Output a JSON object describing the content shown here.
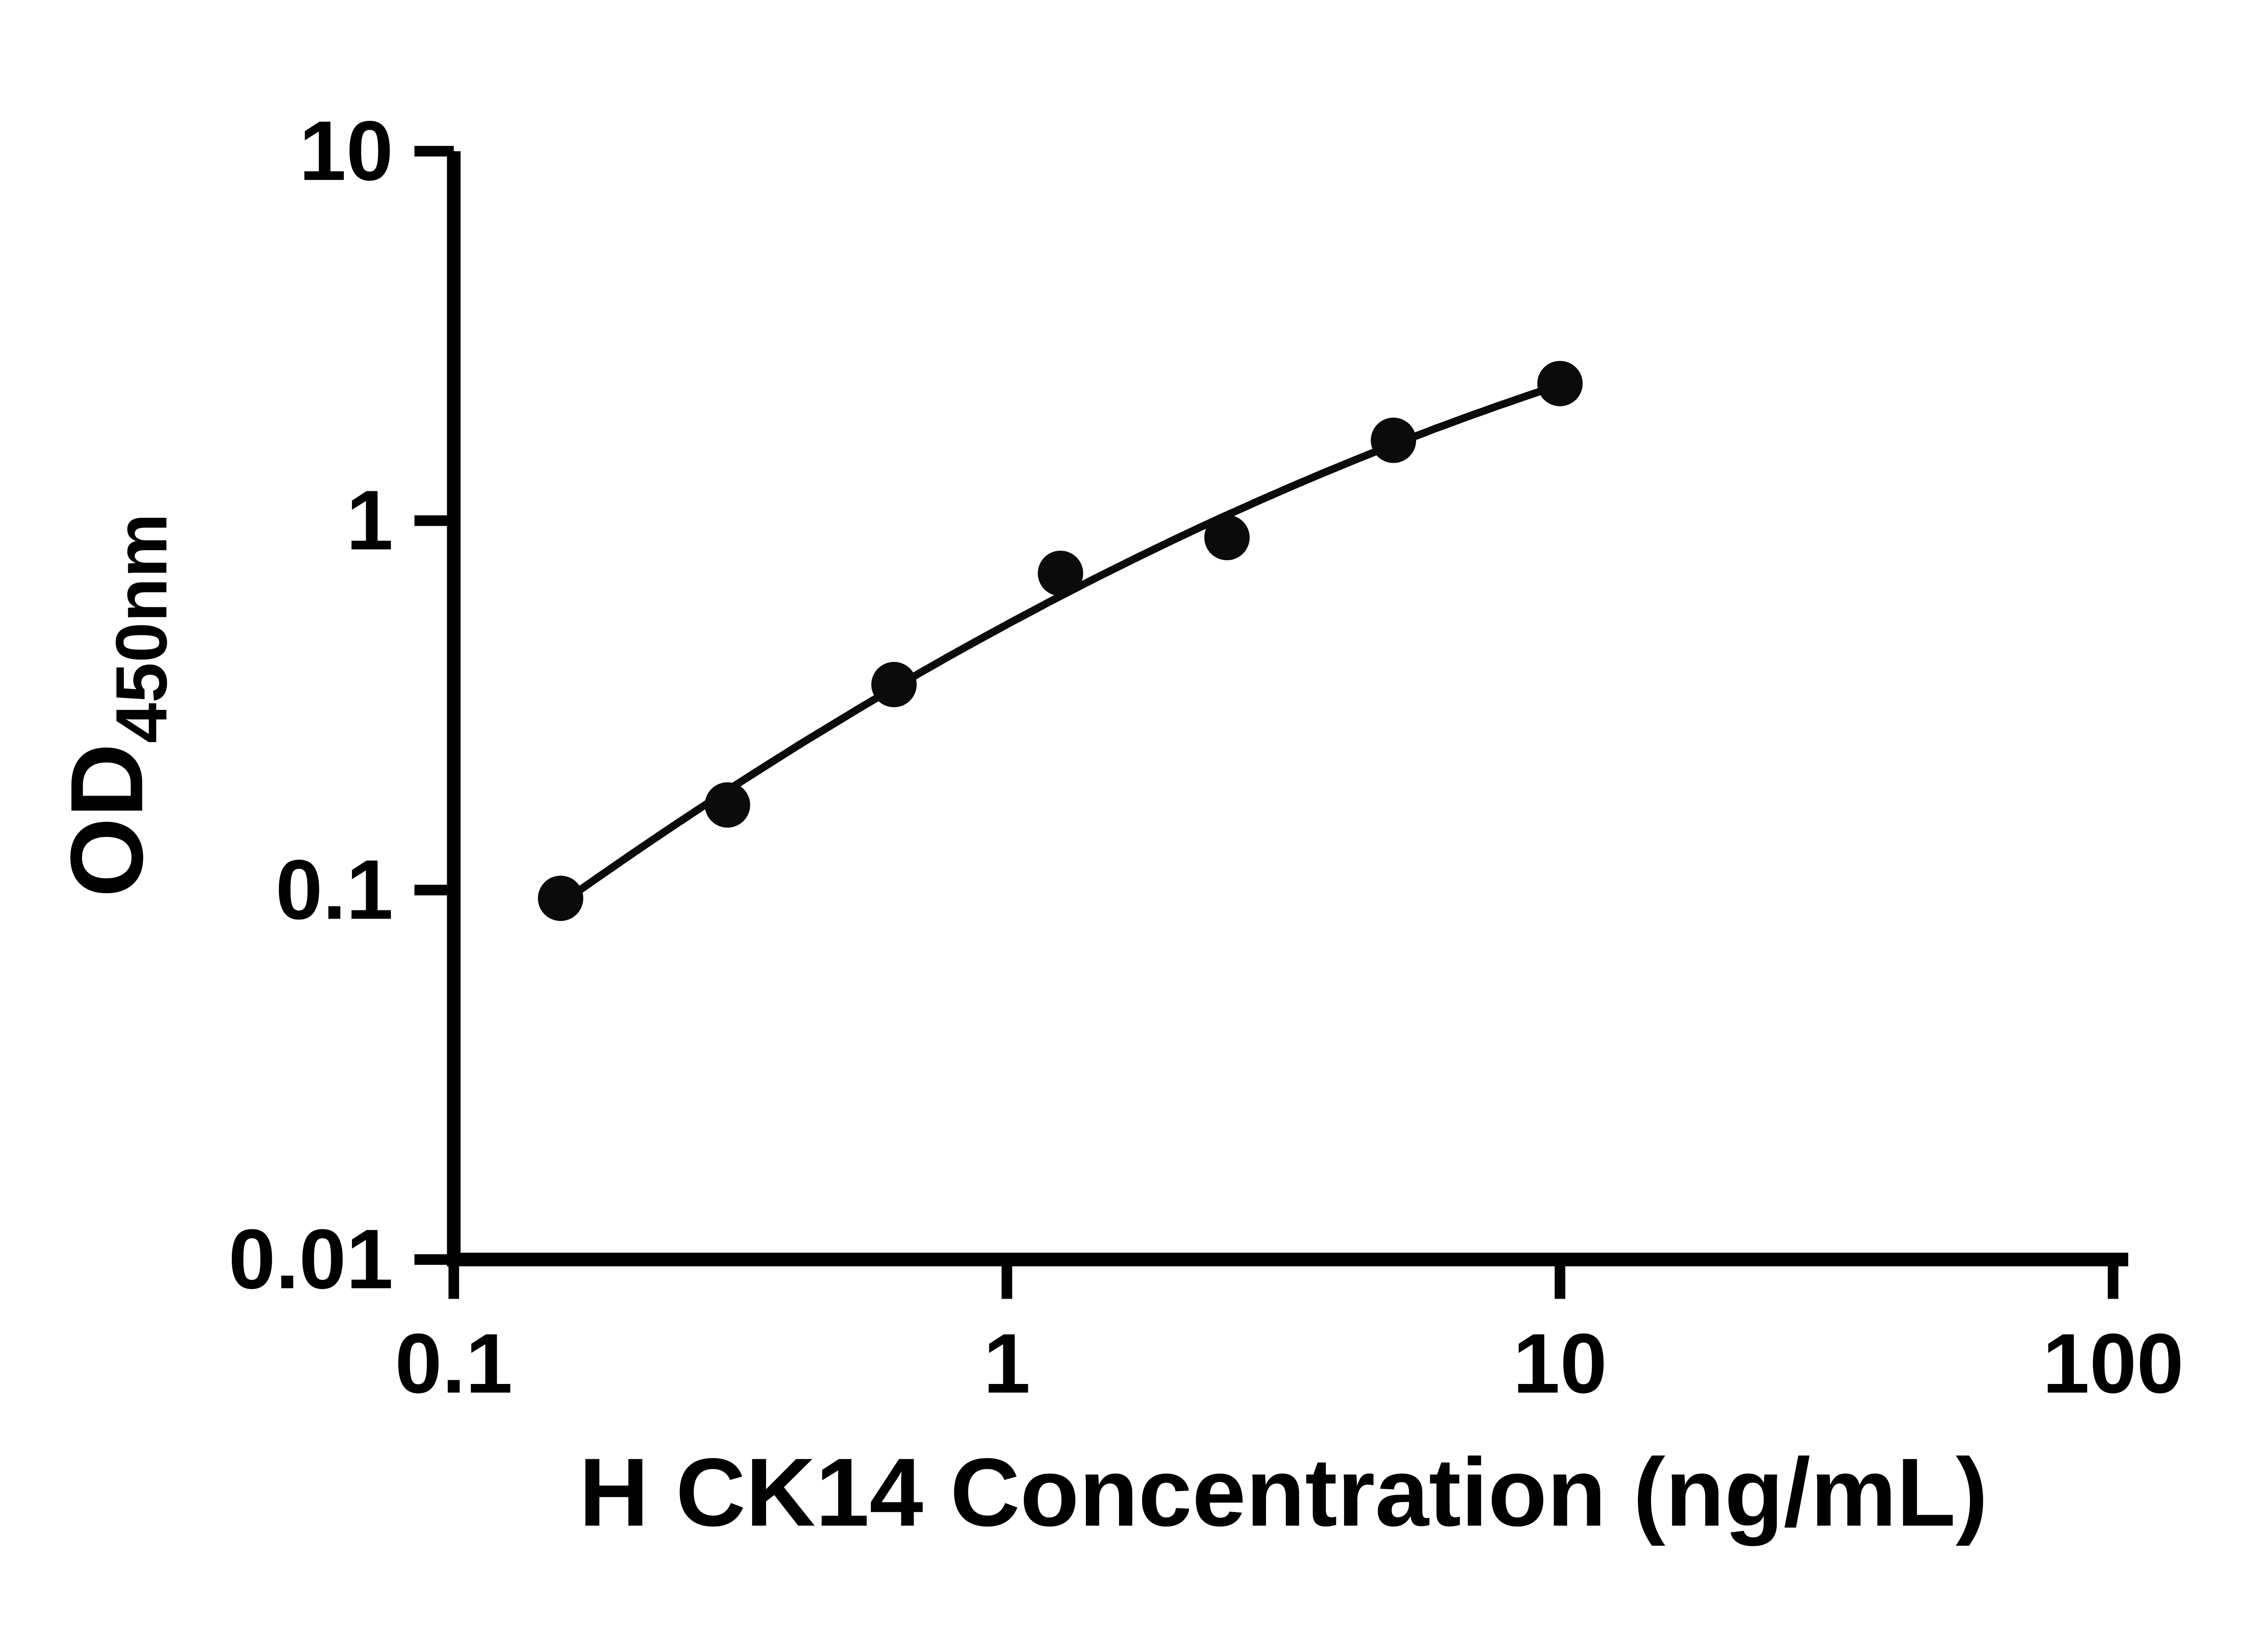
{
  "figure": {
    "background_color": "#ffffff",
    "axis_color": "#000000"
  },
  "chart_data": {
    "type": "scatter",
    "title": "",
    "xlabel": "H CK14 Concentration (ng/mL)",
    "ylabel": "OD",
    "ylabel_subscript": "450nm",
    "xscale": "log",
    "yscale": "log",
    "xlim": [
      0.1,
      100
    ],
    "ylim": [
      0.01,
      10
    ],
    "x_ticks": [
      0.1,
      1,
      10,
      100
    ],
    "x_tick_labels": [
      "0.1",
      "1",
      "10",
      "100"
    ],
    "y_ticks": [
      0.01,
      0.1,
      1,
      10
    ],
    "y_tick_labels": [
      "0.01",
      "0.1",
      "1",
      "10"
    ],
    "grid": "off",
    "legend": "none",
    "marker_color": "#0b0b0b",
    "line_color": "#0b0b0b",
    "fit_line": "smooth standard-curve fit through points",
    "points": [
      {
        "x": 0.156,
        "y": 0.095
      },
      {
        "x": 0.3125,
        "y": 0.17
      },
      {
        "x": 0.625,
        "y": 0.36
      },
      {
        "x": 1.25,
        "y": 0.72
      },
      {
        "x": 2.5,
        "y": 0.9
      },
      {
        "x": 5,
        "y": 1.65
      },
      {
        "x": 10,
        "y": 2.35
      }
    ]
  }
}
